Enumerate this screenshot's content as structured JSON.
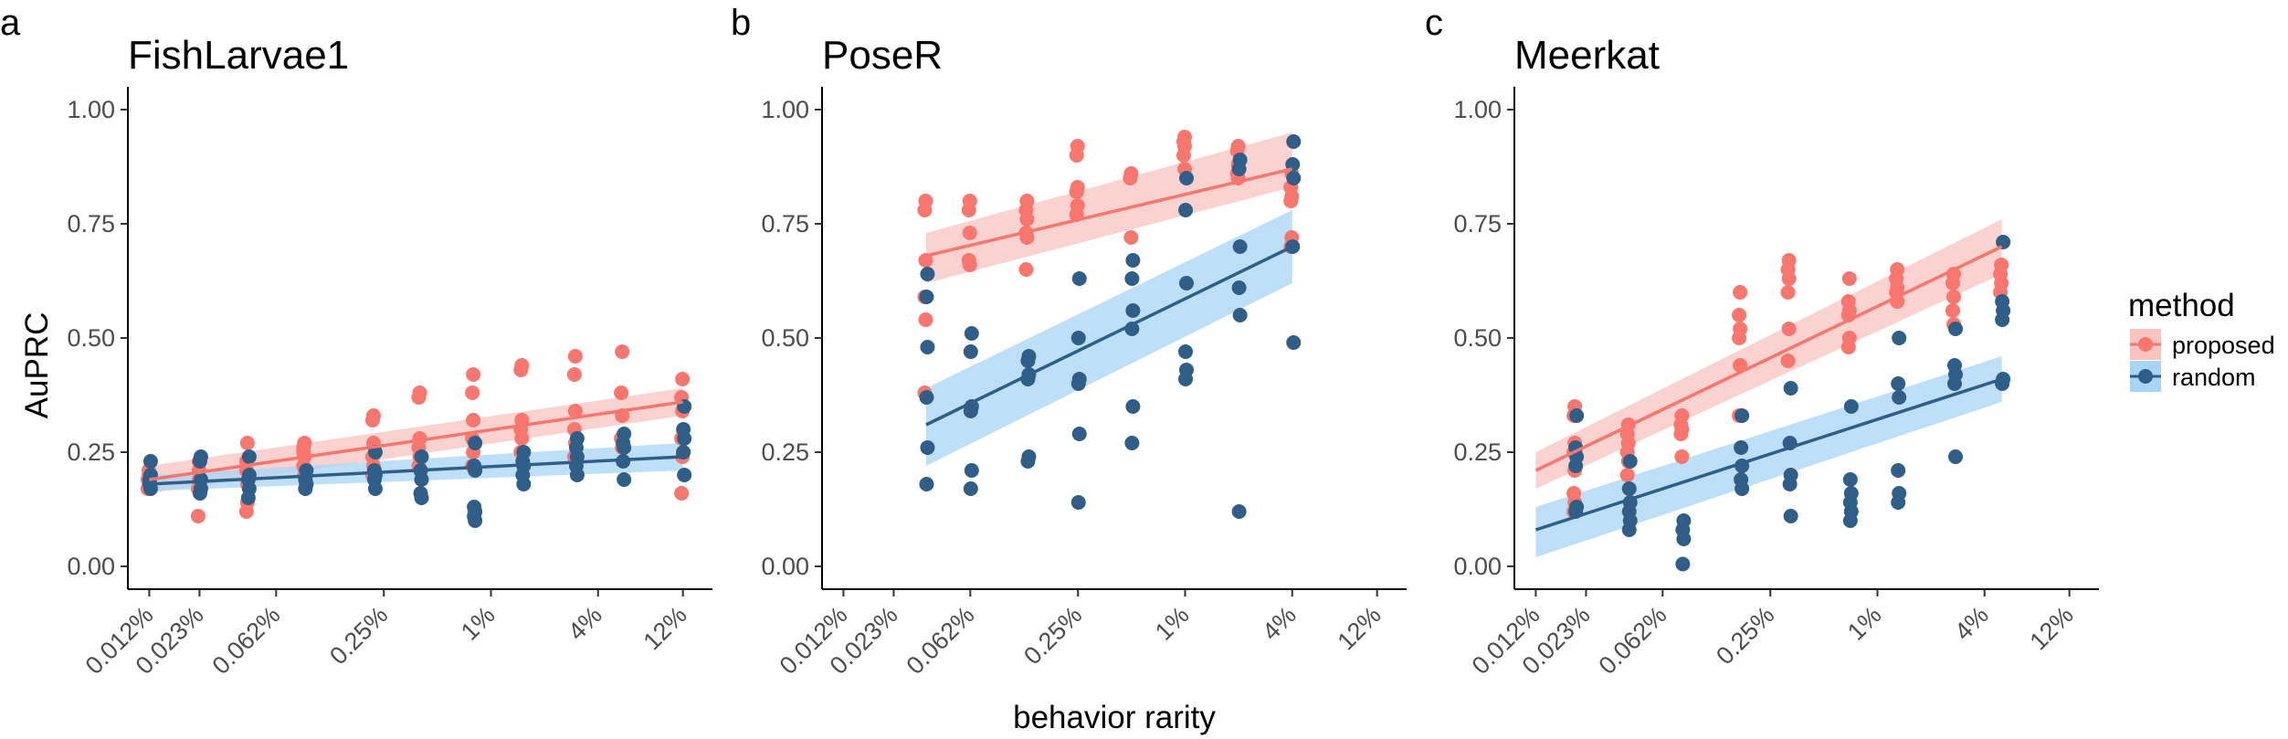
{
  "figure": {
    "x_axis_title": "behavior rarity",
    "y_axis_title": "AuPRC",
    "legend": {
      "title": "method",
      "items": [
        {
          "label": "proposed",
          "color": "#F8766D",
          "band": "#F8C4C0"
        },
        {
          "label": "random",
          "color": "#2F5E88",
          "band": "#A8D4F5"
        }
      ]
    }
  },
  "chart_data": [
    {
      "panel": "a",
      "title": "FishLarvae1",
      "type": "scatter",
      "x_scale": "log10",
      "x_ticks": [
        "0.012%",
        "0.023%",
        "0.062%",
        "0.25%",
        "1%",
        "4%",
        "12%"
      ],
      "x_tick_values": [
        0.012,
        0.023,
        0.062,
        0.25,
        1,
        4,
        12
      ],
      "xlim": [
        0.01,
        16
      ],
      "y_ticks": [
        "0.00",
        "0.25",
        "0.50",
        "0.75",
        "1.00"
      ],
      "ylim": [
        -0.05,
        1.05
      ],
      "grid": false,
      "series": [
        {
          "name": "proposed",
          "trend": {
            "x": [
              0.012,
              12
            ],
            "y": [
              0.19,
              0.36
            ],
            "lower": [
              0.16,
              0.33
            ],
            "upper": [
              0.22,
              0.39
            ]
          },
          "points": [
            {
              "x": 0.012,
              "y": [
                0.21,
                0.19,
                0.18,
                0.17,
                0.2
              ]
            },
            {
              "x": 0.023,
              "y": [
                0.23,
                0.11,
                0.19,
                0.17,
                0.21
              ]
            },
            {
              "x": 0.043,
              "y": [
                0.27,
                0.12,
                0.14,
                0.21,
                0.18,
                0.23
              ]
            },
            {
              "x": 0.09,
              "y": [
                0.27,
                0.26,
                0.24,
                0.22,
                0.2,
                0.25
              ]
            },
            {
              "x": 0.22,
              "y": [
                0.33,
                0.32,
                0.27,
                0.24,
                0.22,
                0.2
              ]
            },
            {
              "x": 0.4,
              "y": [
                0.38,
                0.37,
                0.28,
                0.26,
                0.24,
                0.22
              ]
            },
            {
              "x": 0.8,
              "y": [
                0.42,
                0.38,
                0.32,
                0.28,
                0.25,
                0.22
              ]
            },
            {
              "x": 1.5,
              "y": [
                0.44,
                0.43,
                0.32,
                0.3,
                0.28,
                0.25
              ]
            },
            {
              "x": 3,
              "y": [
                0.46,
                0.42,
                0.34,
                0.3,
                0.27,
                0.24
              ]
            },
            {
              "x": 5.5,
              "y": [
                0.47,
                0.38,
                0.33,
                0.28,
                0.26
              ]
            },
            {
              "x": 12,
              "y": [
                0.41,
                0.37,
                0.34,
                0.28,
                0.24,
                0.16
              ]
            }
          ]
        },
        {
          "name": "random",
          "trend": {
            "x": [
              0.012,
              12
            ],
            "y": [
              0.18,
              0.24
            ],
            "lower": [
              0.165,
              0.21
            ],
            "upper": [
              0.2,
              0.27
            ]
          },
          "points": [
            {
              "x": 0.012,
              "y": [
                0.23,
                0.19,
                0.17,
                0.18,
                0.2
              ]
            },
            {
              "x": 0.023,
              "y": [
                0.24,
                0.23,
                0.17,
                0.16,
                0.19
              ]
            },
            {
              "x": 0.043,
              "y": [
                0.24,
                0.19,
                0.17,
                0.15,
                0.2
              ]
            },
            {
              "x": 0.09,
              "y": [
                0.21,
                0.19,
                0.18,
                0.17
              ]
            },
            {
              "x": 0.22,
              "y": [
                0.25,
                0.21,
                0.2,
                0.19,
                0.17
              ]
            },
            {
              "x": 0.4,
              "y": [
                0.24,
                0.21,
                0.19,
                0.16,
                0.15
              ]
            },
            {
              "x": 0.8,
              "y": [
                0.27,
                0.22,
                0.21,
                0.13,
                0.12,
                0.11,
                0.1
              ]
            },
            {
              "x": 1.5,
              "y": [
                0.25,
                0.23,
                0.22,
                0.2,
                0.18
              ]
            },
            {
              "x": 3,
              "y": [
                0.28,
                0.26,
                0.24,
                0.22,
                0.2
              ]
            },
            {
              "x": 5.5,
              "y": [
                0.29,
                0.27,
                0.26,
                0.23,
                0.19
              ]
            },
            {
              "x": 12,
              "y": [
                0.35,
                0.3,
                0.28,
                0.25,
                0.2
              ]
            }
          ]
        }
      ]
    },
    {
      "panel": "b",
      "title": "PoseR",
      "type": "scatter",
      "x_scale": "log10",
      "x_ticks": [
        "0.012%",
        "0.023%",
        "0.062%",
        "0.25%",
        "1%",
        "4%",
        "12%"
      ],
      "x_tick_values": [
        0.012,
        0.023,
        0.062,
        0.25,
        1,
        4,
        12
      ],
      "xlim": [
        0.01,
        16
      ],
      "y_ticks": [
        "0.00",
        "0.25",
        "0.50",
        "0.75",
        "1.00"
      ],
      "ylim": [
        -0.05,
        1.05
      ],
      "grid": false,
      "series": [
        {
          "name": "proposed",
          "trend": {
            "x": [
              0.035,
              4
            ],
            "y": [
              0.68,
              0.87
            ],
            "lower": [
              0.62,
              0.83
            ],
            "upper": [
              0.73,
              0.95
            ]
          },
          "points": [
            {
              "x": 0.035,
              "y": [
                0.8,
                0.78,
                0.67,
                0.59,
                0.54,
                0.38
              ]
            },
            {
              "x": 0.062,
              "y": [
                0.8,
                0.78,
                0.73,
                0.67,
                0.66
              ]
            },
            {
              "x": 0.13,
              "y": [
                0.8,
                0.78,
                0.76,
                0.73,
                0.72,
                0.65
              ]
            },
            {
              "x": 0.25,
              "y": [
                0.92,
                0.9,
                0.83,
                0.82,
                0.79,
                0.77
              ]
            },
            {
              "x": 0.5,
              "y": [
                0.86,
                0.85,
                0.72
              ]
            },
            {
              "x": 1,
              "y": [
                0.94,
                0.93,
                0.92,
                0.9,
                0.87
              ]
            },
            {
              "x": 2,
              "y": [
                0.92,
                0.91,
                0.88,
                0.86,
                0.85
              ]
            },
            {
              "x": 4,
              "y": [
                0.86,
                0.83,
                0.81,
                0.8,
                0.72,
                0.7
              ]
            }
          ]
        },
        {
          "name": "random",
          "trend": {
            "x": [
              0.035,
              4
            ],
            "y": [
              0.31,
              0.7
            ],
            "lower": [
              0.22,
              0.62
            ],
            "upper": [
              0.39,
              0.78
            ]
          },
          "points": [
            {
              "x": 0.035,
              "y": [
                0.64,
                0.59,
                0.48,
                0.37,
                0.26,
                0.18
              ]
            },
            {
              "x": 0.062,
              "y": [
                0.51,
                0.47,
                0.35,
                0.34,
                0.21,
                0.17
              ]
            },
            {
              "x": 0.13,
              "y": [
                0.46,
                0.45,
                0.42,
                0.41,
                0.24,
                0.23
              ]
            },
            {
              "x": 0.25,
              "y": [
                0.63,
                0.5,
                0.41,
                0.4,
                0.29,
                0.14
              ]
            },
            {
              "x": 0.5,
              "y": [
                0.67,
                0.63,
                0.56,
                0.52,
                0.35,
                0.27
              ]
            },
            {
              "x": 1,
              "y": [
                0.85,
                0.78,
                0.62,
                0.47,
                0.43,
                0.41
              ]
            },
            {
              "x": 2,
              "y": [
                0.89,
                0.87,
                0.7,
                0.61,
                0.55,
                0.12
              ]
            },
            {
              "x": 4,
              "y": [
                0.93,
                0.88,
                0.85,
                0.7,
                0.49
              ]
            }
          ]
        }
      ]
    },
    {
      "panel": "c",
      "title": "Meerkat",
      "type": "scatter",
      "x_scale": "log10",
      "x_ticks": [
        "0.012%",
        "0.023%",
        "0.062%",
        "0.25%",
        "1%",
        "4%",
        "12%"
      ],
      "x_tick_values": [
        0.012,
        0.023,
        0.062,
        0.25,
        1,
        4,
        12
      ],
      "xlim": [
        0.01,
        16
      ],
      "y_ticks": [
        "0.00",
        "0.25",
        "0.50",
        "0.75",
        "1.00"
      ],
      "ylim": [
        -0.05,
        1.05
      ],
      "grid": false,
      "series": [
        {
          "name": "proposed",
          "trend": {
            "x": [
              0.012,
              5
            ],
            "y": [
              0.21,
              0.7
            ],
            "lower": [
              0.17,
              0.64
            ],
            "upper": [
              0.25,
              0.76
            ]
          },
          "points": [
            {
              "x": 0.02,
              "y": [
                0.35,
                0.33,
                0.27,
                0.25,
                0.21,
                0.16,
                0.14,
                0.12
              ]
            },
            {
              "x": 0.04,
              "y": [
                0.31,
                0.29,
                0.27,
                0.25,
                0.23,
                0.2
              ]
            },
            {
              "x": 0.08,
              "y": [
                0.33,
                0.31,
                0.3,
                0.29,
                0.24
              ]
            },
            {
              "x": 0.17,
              "y": [
                0.6,
                0.55,
                0.52,
                0.5,
                0.44,
                0.33
              ]
            },
            {
              "x": 0.32,
              "y": [
                0.67,
                0.65,
                0.63,
                0.6,
                0.52,
                0.45
              ]
            },
            {
              "x": 0.7,
              "y": [
                0.63,
                0.58,
                0.56,
                0.55,
                0.5,
                0.48
              ]
            },
            {
              "x": 1.3,
              "y": [
                0.65,
                0.63,
                0.61,
                0.6,
                0.58
              ]
            },
            {
              "x": 2.7,
              "y": [
                0.64,
                0.62,
                0.59,
                0.56,
                0.53
              ]
            },
            {
              "x": 5,
              "y": [
                0.66,
                0.64,
                0.62,
                0.6
              ]
            }
          ]
        },
        {
          "name": "random",
          "trend": {
            "x": [
              0.012,
              5
            ],
            "y": [
              0.08,
              0.41
            ],
            "lower": [
              0.02,
              0.36
            ],
            "upper": [
              0.13,
              0.46
            ]
          },
          "points": [
            {
              "x": 0.02,
              "y": [
                0.33,
                0.26,
                0.24,
                0.22,
                0.13,
                0.12
              ]
            },
            {
              "x": 0.04,
              "y": [
                0.23,
                0.17,
                0.14,
                0.12,
                0.1,
                0.08
              ]
            },
            {
              "x": 0.08,
              "y": [
                0.1,
                0.08,
                0.06,
                0.005
              ]
            },
            {
              "x": 0.17,
              "y": [
                0.33,
                0.26,
                0.22,
                0.19,
                0.17
              ]
            },
            {
              "x": 0.32,
              "y": [
                0.39,
                0.27,
                0.2,
                0.18,
                0.11
              ]
            },
            {
              "x": 0.7,
              "y": [
                0.35,
                0.19,
                0.16,
                0.14,
                0.12,
                0.1
              ]
            },
            {
              "x": 1.3,
              "y": [
                0.5,
                0.4,
                0.37,
                0.21,
                0.16,
                0.14
              ]
            },
            {
              "x": 2.7,
              "y": [
                0.52,
                0.44,
                0.42,
                0.4,
                0.24
              ]
            },
            {
              "x": 5,
              "y": [
                0.71,
                0.58,
                0.56,
                0.54,
                0.41,
                0.4
              ]
            }
          ]
        }
      ]
    }
  ]
}
